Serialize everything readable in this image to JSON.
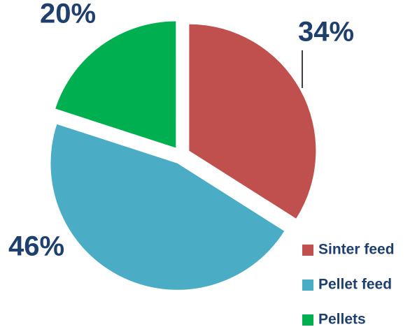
{
  "chart_data": {
    "type": "pie",
    "categories": [
      "Sinter feed",
      "Pellet feed",
      "Pellets"
    ],
    "values": [
      34,
      46,
      20
    ],
    "value_labels": [
      "34%",
      "46%",
      "20%"
    ],
    "colors": [
      "#c0504d",
      "#4bacc6",
      "#00b050"
    ],
    "legend": "lower right"
  }
}
